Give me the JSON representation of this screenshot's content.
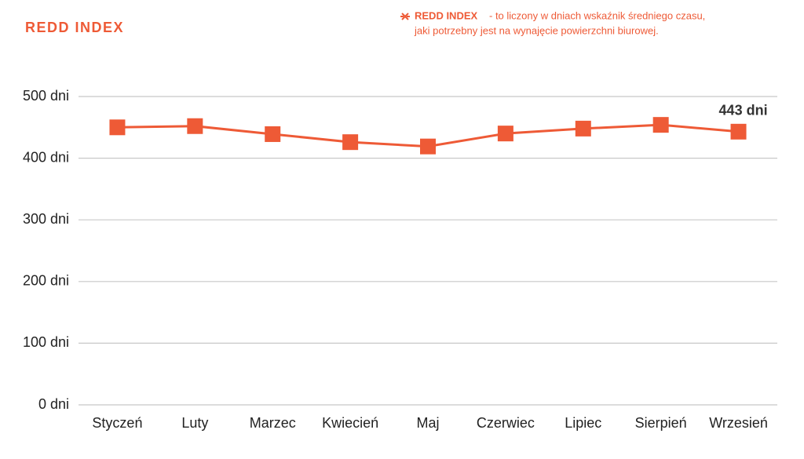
{
  "chart_data": {
    "type": "line",
    "title": "REDD INDEX",
    "note": [
      "- to liczony w dniach wskaźnik średniego czasu,",
      "jaki potrzebny jest na wynajęcie powierzchni biurowej."
    ],
    "categories": [
      "Styczeń",
      "Luty",
      "Marzec",
      "Kwiecień",
      "Maj",
      "Czerwiec",
      "Lipiec",
      "Sierpień",
      "Wrzesień"
    ],
    "series": [
      {
        "name": "REDD INDEX",
        "color": "#ee5a36",
        "values": [
          450,
          452,
          439,
          426,
          419,
          440,
          448,
          454,
          443
        ],
        "value_labels": [
          null,
          null,
          null,
          null,
          null,
          null,
          null,
          null,
          "443 dni"
        ]
      }
    ],
    "ylim": [
      0,
      500
    ],
    "yticks": [
      {
        "value": 0,
        "label": "0 dni"
      },
      {
        "value": 100,
        "label": "100 dni"
      },
      {
        "value": 200,
        "label": "200 dni"
      },
      {
        "value": 300,
        "label": "300 dni"
      },
      {
        "value": 400,
        "label": "400 dni"
      },
      {
        "value": 500,
        "label": "500 dni"
      }
    ],
    "grid": true
  }
}
